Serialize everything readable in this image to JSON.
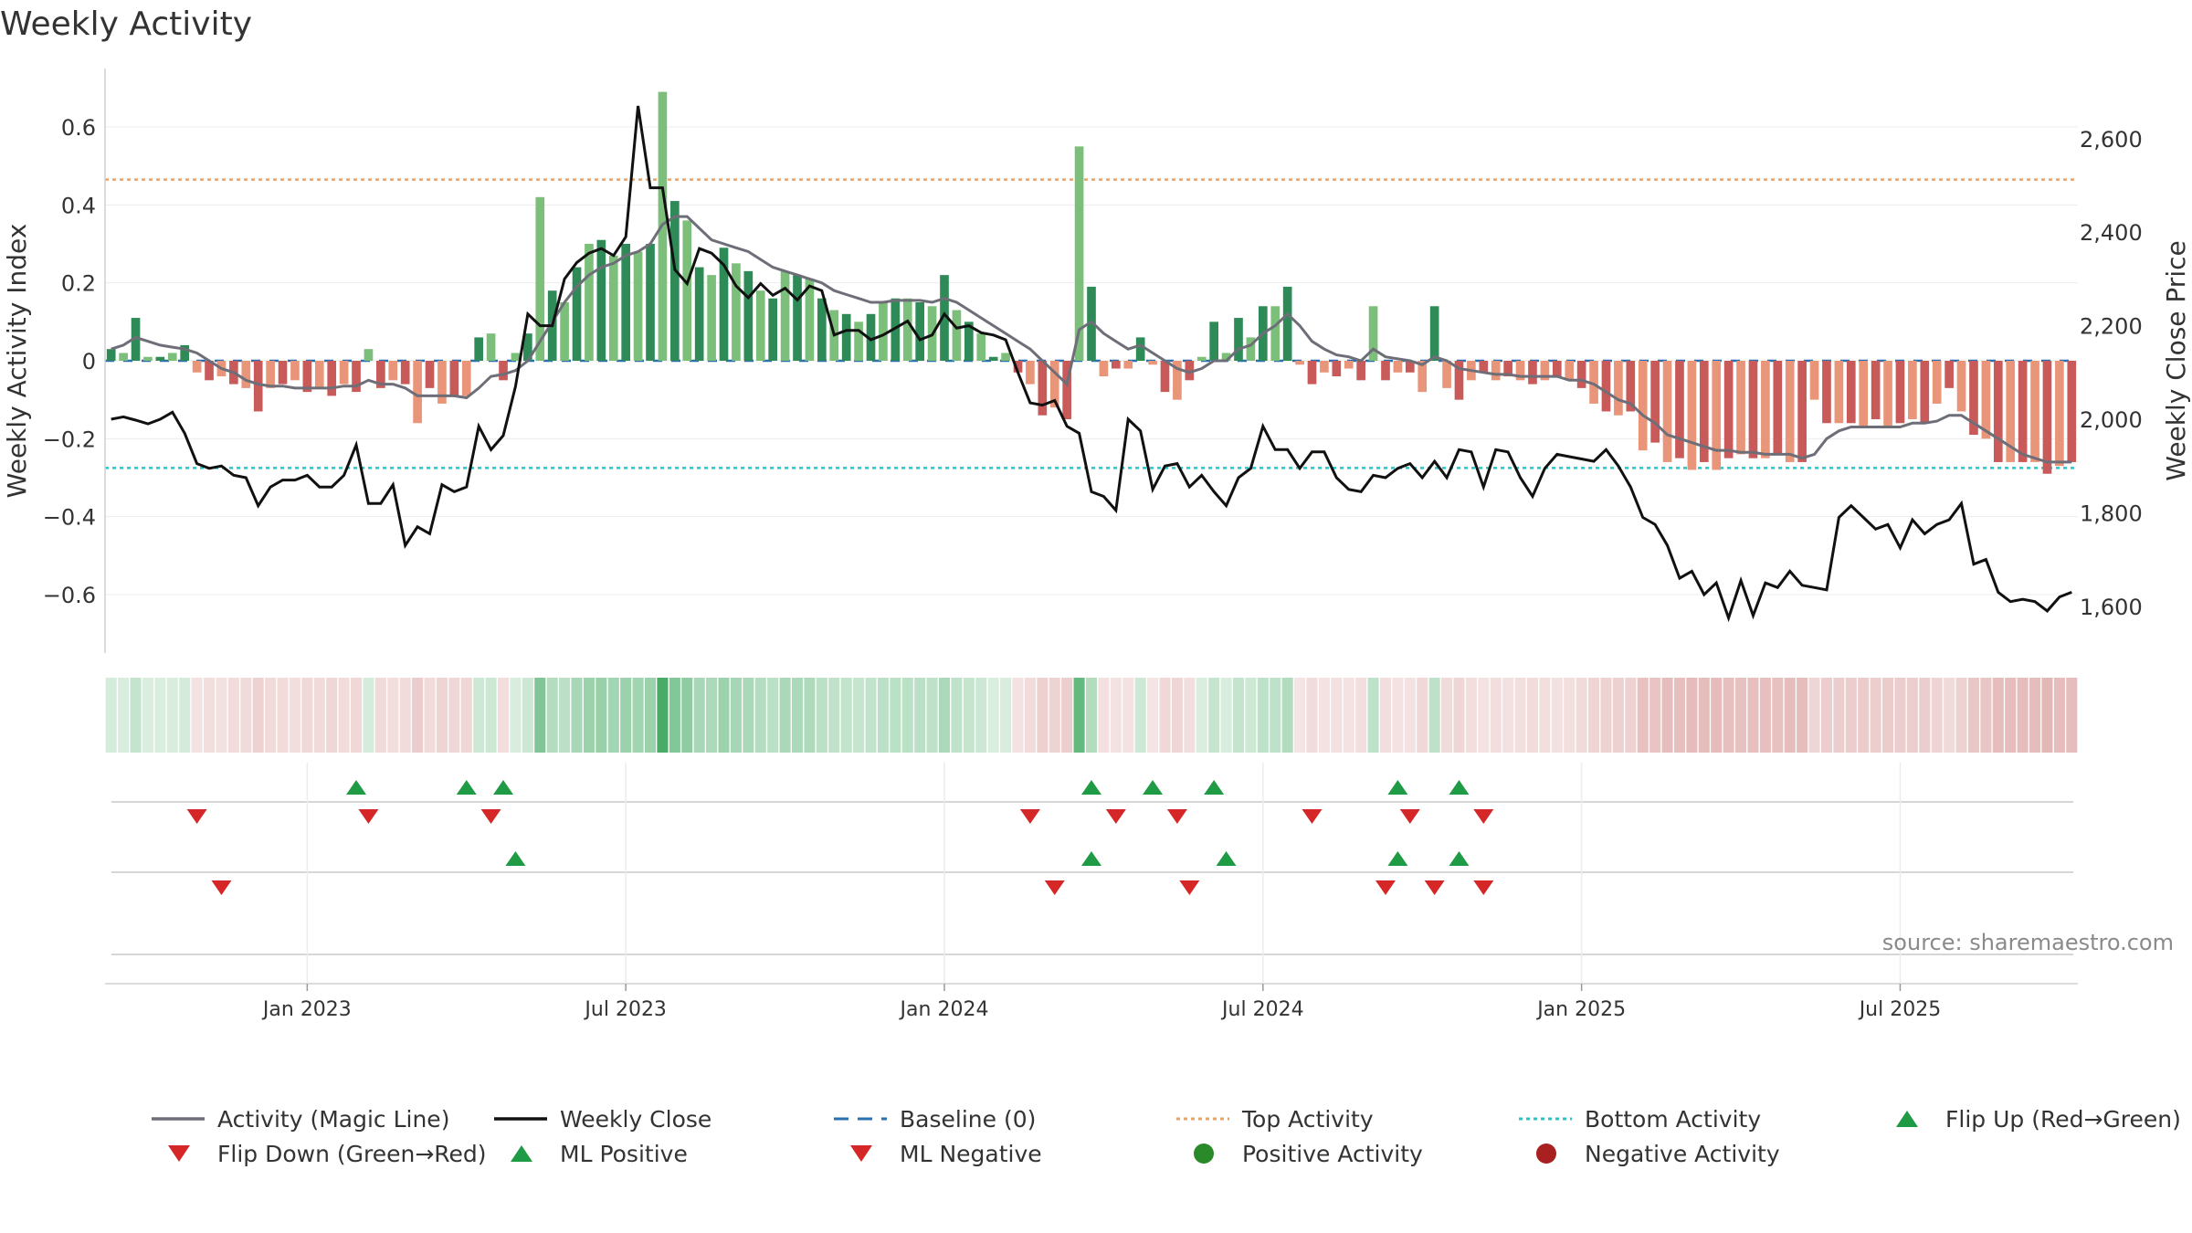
{
  "chart_data": {
    "type": "bar",
    "title": "Weekly Activity",
    "ylabel_left": "Weekly Activity Index",
    "ylabel_right": "Weekly Close Price",
    "source": "source: sharemaestro.com",
    "ylim_left": [
      -0.75,
      0.75
    ],
    "ylim_right": [
      1500,
      2750
    ],
    "yticks_left": [
      {
        "v": 0.6,
        "label": "0.6"
      },
      {
        "v": 0.4,
        "label": "0.4"
      },
      {
        "v": 0.2,
        "label": "0.2"
      },
      {
        "v": 0,
        "label": "0"
      },
      {
        "v": -0.2,
        "label": "−0.2"
      },
      {
        "v": -0.4,
        "label": "−0.4"
      },
      {
        "v": -0.6,
        "label": "−0.6"
      }
    ],
    "yticks_right": [
      {
        "v": 2600,
        "label": "2,600"
      },
      {
        "v": 2400,
        "label": "2,400"
      },
      {
        "v": 2200,
        "label": "2,200"
      },
      {
        "v": 2000,
        "label": "2,000"
      },
      {
        "v": 1800,
        "label": "1,800"
      },
      {
        "v": 1600,
        "label": "1,600"
      }
    ],
    "xticks": [
      {
        "week": 16,
        "label": "Jan 2023"
      },
      {
        "week": 42,
        "label": "Jul 2023"
      },
      {
        "week": 68,
        "label": "Jan 2024"
      },
      {
        "week": 94,
        "label": "Jul 2024"
      },
      {
        "week": 120,
        "label": "Jan 2025"
      },
      {
        "week": 146,
        "label": "Jul 2025"
      }
    ],
    "top_activity": 0.465,
    "bottom_activity": -0.275,
    "activity": [
      0.03,
      0.02,
      0.11,
      0.01,
      0.01,
      0.02,
      0.04,
      -0.03,
      -0.05,
      -0.04,
      -0.06,
      -0.07,
      -0.13,
      -0.07,
      -0.06,
      -0.05,
      -0.08,
      -0.07,
      -0.09,
      -0.06,
      -0.08,
      0.03,
      -0.07,
      -0.05,
      -0.06,
      -0.16,
      -0.07,
      -0.11,
      -0.09,
      -0.09,
      0.06,
      0.07,
      -0.05,
      0.02,
      0.07,
      0.42,
      0.18,
      0.15,
      0.24,
      0.3,
      0.31,
      0.27,
      0.3,
      0.28,
      0.3,
      0.69,
      0.41,
      0.36,
      0.24,
      0.22,
      0.29,
      0.25,
      0.23,
      0.18,
      0.16,
      0.23,
      0.22,
      0.21,
      0.16,
      0.13,
      0.12,
      0.1,
      0.12,
      0.15,
      0.16,
      0.16,
      0.15,
      0.14,
      0.22,
      0.13,
      0.1,
      0.07,
      0.01,
      0.02,
      -0.03,
      -0.06,
      -0.14,
      -0.12,
      -0.15,
      0.55,
      0.19,
      -0.04,
      -0.02,
      -0.02,
      0.06,
      -0.01,
      -0.08,
      -0.1,
      -0.05,
      0.01,
      0.1,
      0.02,
      0.11,
      0.06,
      0.14,
      0.14,
      0.19,
      -0.01,
      -0.06,
      -0.03,
      -0.04,
      -0.02,
      -0.05,
      0.14,
      -0.05,
      -0.03,
      -0.03,
      -0.08,
      0.14,
      -0.07,
      -0.1,
      -0.05,
      -0.03,
      -0.05,
      -0.04,
      -0.05,
      -0.06,
      -0.05,
      -0.04,
      -0.05,
      -0.07,
      -0.11,
      -0.13,
      -0.14,
      -0.13,
      -0.23,
      -0.21,
      -0.26,
      -0.25,
      -0.28,
      -0.26,
      -0.28,
      -0.25,
      -0.24,
      -0.25,
      -0.25,
      -0.24,
      -0.26,
      -0.26,
      -0.1,
      -0.16,
      -0.16,
      -0.16,
      -0.17,
      -0.15,
      -0.17,
      -0.16,
      -0.15,
      -0.16,
      -0.11,
      -0.07,
      -0.13,
      -0.19,
      -0.2,
      -0.26,
      -0.26,
      -0.26,
      -0.26,
      -0.29,
      -0.27,
      -0.26
    ],
    "magic_line": [
      0.03,
      0.04,
      0.06,
      0.05,
      0.04,
      0.035,
      0.03,
      0.02,
      0.0,
      -0.02,
      -0.03,
      -0.05,
      -0.06,
      -0.065,
      -0.065,
      -0.07,
      -0.07,
      -0.07,
      -0.07,
      -0.065,
      -0.065,
      -0.05,
      -0.06,
      -0.06,
      -0.07,
      -0.09,
      -0.09,
      -0.09,
      -0.09,
      -0.095,
      -0.07,
      -0.04,
      -0.035,
      -0.025,
      0.0,
      0.05,
      0.1,
      0.15,
      0.19,
      0.22,
      0.24,
      0.25,
      0.27,
      0.28,
      0.3,
      0.35,
      0.37,
      0.37,
      0.34,
      0.31,
      0.3,
      0.29,
      0.28,
      0.26,
      0.24,
      0.23,
      0.22,
      0.21,
      0.2,
      0.18,
      0.17,
      0.16,
      0.15,
      0.15,
      0.155,
      0.155,
      0.155,
      0.15,
      0.16,
      0.15,
      0.13,
      0.11,
      0.09,
      0.07,
      0.05,
      0.03,
      0.0,
      -0.03,
      -0.06,
      0.08,
      0.1,
      0.07,
      0.05,
      0.03,
      0.04,
      0.02,
      0.0,
      -0.02,
      -0.03,
      -0.02,
      0.0,
      0.0,
      0.03,
      0.04,
      0.07,
      0.09,
      0.12,
      0.09,
      0.05,
      0.03,
      0.015,
      0.01,
      0.0,
      0.03,
      0.01,
      0.005,
      0.0,
      -0.01,
      0.01,
      0.0,
      -0.02,
      -0.025,
      -0.03,
      -0.035,
      -0.035,
      -0.04,
      -0.04,
      -0.04,
      -0.04,
      -0.05,
      -0.05,
      -0.06,
      -0.08,
      -0.1,
      -0.11,
      -0.14,
      -0.16,
      -0.19,
      -0.2,
      -0.21,
      -0.22,
      -0.23,
      -0.23,
      -0.235,
      -0.235,
      -0.24,
      -0.24,
      -0.24,
      -0.25,
      -0.24,
      -0.2,
      -0.18,
      -0.17,
      -0.17,
      -0.17,
      -0.17,
      -0.17,
      -0.16,
      -0.16,
      -0.155,
      -0.14,
      -0.14,
      -0.16,
      -0.18,
      -0.2,
      -0.22,
      -0.24,
      -0.25,
      -0.26,
      -0.26,
      -0.26
    ],
    "weekly_close": [
      2000,
      2005,
      1998,
      1990,
      2000,
      2015,
      1970,
      1905,
      1895,
      1900,
      1880,
      1875,
      1815,
      1855,
      1870,
      1870,
      1880,
      1855,
      1855,
      1880,
      1945,
      1820,
      1820,
      1860,
      1730,
      1770,
      1755,
      1860,
      1845,
      1855,
      1985,
      1935,
      1965,
      2070,
      2225,
      2200,
      2200,
      2300,
      2335,
      2355,
      2365,
      2350,
      2390,
      2670,
      2495,
      2495,
      2320,
      2290,
      2365,
      2355,
      2330,
      2285,
      2260,
      2290,
      2265,
      2280,
      2255,
      2285,
      2275,
      2180,
      2190,
      2190,
      2170,
      2180,
      2195,
      2210,
      2170,
      2180,
      2225,
      2195,
      2200,
      2185,
      2180,
      2170,
      2100,
      2035,
      2030,
      2040,
      1985,
      1970,
      1845,
      1835,
      1805,
      2000,
      1975,
      1850,
      1900,
      1905,
      1855,
      1880,
      1845,
      1815,
      1875,
      1895,
      1985,
      1935,
      1935,
      1895,
      1930,
      1930,
      1875,
      1850,
      1845,
      1880,
      1875,
      1895,
      1905,
      1875,
      1910,
      1875,
      1935,
      1930,
      1855,
      1935,
      1930,
      1875,
      1835,
      1895,
      1925,
      1920,
      1915,
      1910,
      1935,
      1900,
      1855,
      1790,
      1775,
      1730,
      1660,
      1675,
      1625,
      1650,
      1575,
      1655,
      1580,
      1650,
      1640,
      1675,
      1645,
      1640,
      1635,
      1790,
      1815,
      1790,
      1765,
      1775,
      1725,
      1785,
      1755,
      1775,
      1785,
      1820,
      1690,
      1700,
      1630,
      1610,
      1615,
      1610,
      1590,
      1620,
      1630
    ],
    "heat_strip": {
      "positive_color": "#3aa55a",
      "negative_color": "#c97070"
    },
    "flip_up": [
      20,
      29,
      32,
      80,
      85,
      90,
      105,
      110
    ],
    "flip_down": [
      7,
      21,
      31,
      75,
      82,
      87,
      98,
      106,
      112
    ],
    "ml_positive": [
      33,
      80,
      91,
      105,
      110
    ],
    "ml_negative": [
      9,
      77,
      88,
      104,
      108,
      112
    ],
    "positive_activity": [],
    "negative_activity": [],
    "legend": [
      {
        "label": "Activity (Magic Line)",
        "kind": "line",
        "color": "#6e6e78"
      },
      {
        "label": "Weekly Close",
        "kind": "line",
        "color": "#111111"
      },
      {
        "label": "Baseline (0)",
        "kind": "dash",
        "color": "#2a6fb0"
      },
      {
        "label": "Top Activity",
        "kind": "dot",
        "color": "#e6a36a"
      },
      {
        "label": "Bottom Activity",
        "kind": "dot",
        "color": "#2ec4c4"
      },
      {
        "label": "Flip Up (Red→Green)",
        "kind": "tri-up",
        "color": "#1f9a45"
      },
      {
        "label": "Flip Down (Green→Red)",
        "kind": "tri-down",
        "color": "#d62728"
      },
      {
        "label": "ML Positive",
        "kind": "tri-up",
        "color": "#1f9a45"
      },
      {
        "label": "ML Negative",
        "kind": "tri-down",
        "color": "#d62728"
      },
      {
        "label": "Positive Activity",
        "kind": "circle",
        "color": "#2a8a2a"
      },
      {
        "label": "Negative Activity",
        "kind": "circle",
        "color": "#a82020"
      }
    ]
  }
}
